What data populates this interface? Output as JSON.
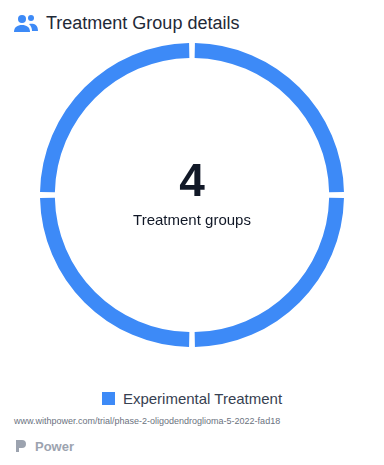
{
  "chart_data": {
    "type": "doughnut",
    "title": "Treatment Group details",
    "categories": [
      "Experimental Treatment",
      "Experimental Treatment",
      "Experimental Treatment",
      "Experimental Treatment"
    ],
    "values": [
      1,
      1,
      1,
      1
    ],
    "color": "#3d8af7",
    "legend": "bottom",
    "center_value": 4,
    "center_label": "Treatment groups",
    "source": "www.withpower.com/trial/phase-2-oligodendroglioma-5-2022-fad18",
    "brand": "Power"
  }
}
